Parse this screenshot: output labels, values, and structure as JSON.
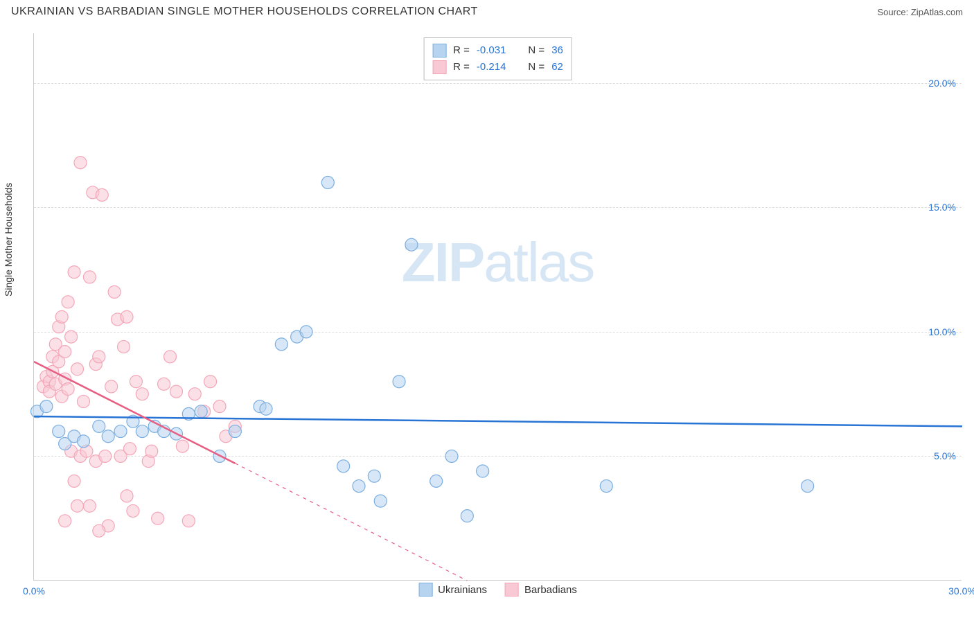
{
  "header": {
    "title": "UKRAINIAN VS BARBADIAN SINGLE MOTHER HOUSEHOLDS CORRELATION CHART",
    "source": "Source: ZipAtlas.com"
  },
  "watermark": {
    "part1": "ZIP",
    "part2": "atlas"
  },
  "chart": {
    "type": "scatter",
    "ylabel": "Single Mother Households",
    "label_fontsize": 14,
    "background_color": "#ffffff",
    "grid_color": "#dddddd",
    "axis_color": "#cccccc",
    "xlim": [
      0,
      30
    ],
    "ylim": [
      0,
      22
    ],
    "xtick_labels": [
      {
        "x": 0,
        "label": "0.0%",
        "color": "#2874d4"
      },
      {
        "x": 30,
        "label": "30.0%",
        "color": "#2874d4"
      }
    ],
    "ytick_labels": [
      {
        "y": 5,
        "label": "5.0%",
        "color": "#2874d4"
      },
      {
        "y": 10,
        "label": "10.0%",
        "color": "#2874d4"
      },
      {
        "y": 15,
        "label": "15.0%",
        "color": "#2874d4"
      },
      {
        "y": 20,
        "label": "20.0%",
        "color": "#2874d4"
      }
    ],
    "grid_y": [
      5,
      10,
      15,
      20
    ],
    "marker_radius": 9,
    "marker_opacity": 0.55,
    "line_width": 2.5,
    "series": [
      {
        "name": "Ukrainians",
        "color": "#7aaee0",
        "stroke": "#2874d4",
        "fill": "#b6d3f0",
        "R": "-0.031",
        "N": "36",
        "trend": {
          "x1": 0,
          "y1": 6.6,
          "x2": 30,
          "y2": 6.2,
          "dash_from_x": null
        },
        "points": [
          [
            0.1,
            6.8
          ],
          [
            0.4,
            7.0
          ],
          [
            0.8,
            6.0
          ],
          [
            1.0,
            5.5
          ],
          [
            1.3,
            5.8
          ],
          [
            1.6,
            5.6
          ],
          [
            2.1,
            6.2
          ],
          [
            2.4,
            5.8
          ],
          [
            2.8,
            6.0
          ],
          [
            3.2,
            6.4
          ],
          [
            3.5,
            6.0
          ],
          [
            3.9,
            6.2
          ],
          [
            4.2,
            6.0
          ],
          [
            4.6,
            5.9
          ],
          [
            5.0,
            6.7
          ],
          [
            5.4,
            6.8
          ],
          [
            6.0,
            5.0
          ],
          [
            6.5,
            6.0
          ],
          [
            7.3,
            7.0
          ],
          [
            7.5,
            6.9
          ],
          [
            8.0,
            9.5
          ],
          [
            8.5,
            9.8
          ],
          [
            8.8,
            10.0
          ],
          [
            9.5,
            16.0
          ],
          [
            10.0,
            4.6
          ],
          [
            10.5,
            3.8
          ],
          [
            11.0,
            4.2
          ],
          [
            11.2,
            3.2
          ],
          [
            11.8,
            8.0
          ],
          [
            12.2,
            13.5
          ],
          [
            13.0,
            4.0
          ],
          [
            13.5,
            5.0
          ],
          [
            14.0,
            2.6
          ],
          [
            14.5,
            4.4
          ],
          [
            18.5,
            3.8
          ],
          [
            25.0,
            3.8
          ]
        ]
      },
      {
        "name": "Barbadians",
        "color": "#f4a6b7",
        "stroke": "#e85d82",
        "fill": "#f8c9d4",
        "R": "-0.214",
        "N": "62",
        "trend": {
          "x1": 0,
          "y1": 8.8,
          "x2": 14,
          "y2": 0.0,
          "dash_from_x": 6.5
        },
        "points": [
          [
            0.3,
            7.8
          ],
          [
            0.4,
            8.2
          ],
          [
            0.5,
            8.0
          ],
          [
            0.5,
            7.6
          ],
          [
            0.6,
            9.0
          ],
          [
            0.6,
            8.4
          ],
          [
            0.7,
            9.5
          ],
          [
            0.7,
            7.9
          ],
          [
            0.8,
            10.2
          ],
          [
            0.8,
            8.8
          ],
          [
            0.9,
            10.6
          ],
          [
            0.9,
            7.4
          ],
          [
            1.0,
            9.2
          ],
          [
            1.0,
            8.1
          ],
          [
            1.1,
            11.2
          ],
          [
            1.1,
            7.7
          ],
          [
            1.2,
            9.8
          ],
          [
            1.2,
            5.2
          ],
          [
            1.3,
            4.0
          ],
          [
            1.3,
            12.4
          ],
          [
            1.4,
            8.5
          ],
          [
            1.5,
            16.8
          ],
          [
            1.5,
            5.0
          ],
          [
            1.6,
            7.2
          ],
          [
            1.7,
            5.2
          ],
          [
            1.8,
            3.0
          ],
          [
            1.8,
            12.2
          ],
          [
            1.9,
            15.6
          ],
          [
            2.0,
            4.8
          ],
          [
            2.0,
            8.7
          ],
          [
            2.1,
            9.0
          ],
          [
            2.2,
            15.5
          ],
          [
            2.3,
            5.0
          ],
          [
            2.4,
            2.2
          ],
          [
            2.5,
            7.8
          ],
          [
            2.6,
            11.6
          ],
          [
            2.7,
            10.5
          ],
          [
            2.8,
            5.0
          ],
          [
            2.9,
            9.4
          ],
          [
            3.0,
            10.6
          ],
          [
            3.1,
            5.3
          ],
          [
            3.2,
            2.8
          ],
          [
            3.3,
            8.0
          ],
          [
            3.5,
            7.5
          ],
          [
            3.7,
            4.8
          ],
          [
            3.8,
            5.2
          ],
          [
            4.0,
            2.5
          ],
          [
            4.2,
            7.9
          ],
          [
            4.4,
            9.0
          ],
          [
            4.6,
            7.6
          ],
          [
            4.8,
            5.4
          ],
          [
            5.0,
            2.4
          ],
          [
            5.2,
            7.5
          ],
          [
            5.5,
            6.8
          ],
          [
            5.7,
            8.0
          ],
          [
            6.0,
            7.0
          ],
          [
            6.2,
            5.8
          ],
          [
            6.5,
            6.2
          ],
          [
            1.0,
            2.4
          ],
          [
            1.4,
            3.0
          ],
          [
            2.1,
            2.0
          ],
          [
            3.0,
            3.4
          ]
        ]
      }
    ],
    "stats_box": {
      "rows": [
        {
          "swatch_fill": "#b6d3f0",
          "swatch_stroke": "#7aaee0",
          "r_label": "R =",
          "r_value": "-0.031",
          "n_label": "N =",
          "n_value": "36"
        },
        {
          "swatch_fill": "#f8c9d4",
          "swatch_stroke": "#f4a6b7",
          "r_label": "R =",
          "r_value": "-0.214",
          "n_label": "N =",
          "n_value": "62"
        }
      ]
    },
    "legend": [
      {
        "label": "Ukrainians",
        "swatch_fill": "#b6d3f0",
        "swatch_stroke": "#7aaee0"
      },
      {
        "label": "Barbadians",
        "swatch_fill": "#f8c9d4",
        "swatch_stroke": "#f4a6b7"
      }
    ]
  }
}
